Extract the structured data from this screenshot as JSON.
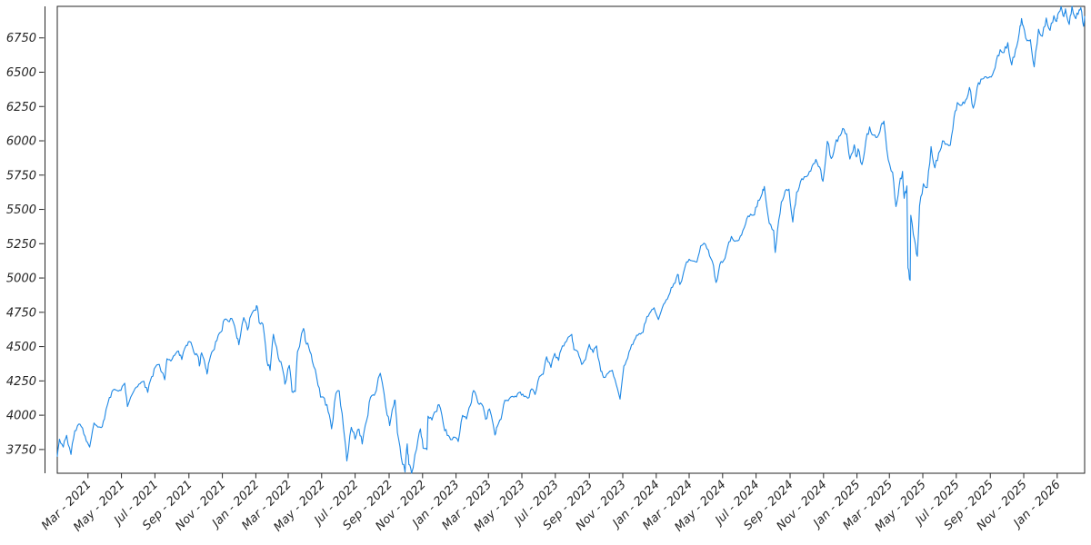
{
  "figure": {
    "background": "#ffffff",
    "title": "",
    "legend": null
  },
  "chart_data": {
    "type": "line",
    "title": "",
    "xlabel": "",
    "ylabel": "",
    "grid": false,
    "legend_position": "none",
    "line_color": "#1E88E5",
    "axis_color": "#262626",
    "tick_label_color": "#262626",
    "ylim": [
      3577,
      6980
    ],
    "x_domain": [
      "2021-01-04",
      "2026-02-20"
    ],
    "yticks": [
      3750,
      4000,
      4250,
      4500,
      4750,
      5000,
      5250,
      5500,
      5750,
      6000,
      6250,
      6500,
      6750
    ],
    "xticks": [
      {
        "date": "2021-03-01",
        "label": "Mar - 2021"
      },
      {
        "date": "2021-05-01",
        "label": "May - 2021"
      },
      {
        "date": "2021-07-01",
        "label": "Jul - 2021"
      },
      {
        "date": "2021-09-01",
        "label": "Sep - 2021"
      },
      {
        "date": "2021-11-01",
        "label": "Nov - 2021"
      },
      {
        "date": "2022-01-01",
        "label": "Jan - 2022"
      },
      {
        "date": "2022-03-01",
        "label": "Mar - 2022"
      },
      {
        "date": "2022-05-01",
        "label": "May - 2022"
      },
      {
        "date": "2022-07-01",
        "label": "Jul - 2022"
      },
      {
        "date": "2022-09-01",
        "label": "Sep - 2022"
      },
      {
        "date": "2022-11-01",
        "label": "Nov - 2022"
      },
      {
        "date": "2023-01-01",
        "label": "Jan - 2023"
      },
      {
        "date": "2023-03-01",
        "label": "Mar - 2023"
      },
      {
        "date": "2023-05-01",
        "label": "May - 2023"
      },
      {
        "date": "2023-07-01",
        "label": "Jul - 2023"
      },
      {
        "date": "2023-09-01",
        "label": "Sep - 2023"
      },
      {
        "date": "2023-11-01",
        "label": "Nov - 2023"
      },
      {
        "date": "2024-01-01",
        "label": "Jan - 2024"
      },
      {
        "date": "2024-03-01",
        "label": "Mar - 2024"
      },
      {
        "date": "2024-05-01",
        "label": "May - 2024"
      },
      {
        "date": "2024-07-01",
        "label": "Jul - 2024"
      },
      {
        "date": "2024-09-01",
        "label": "Sep - 2024"
      },
      {
        "date": "2024-11-01",
        "label": "Nov - 2024"
      },
      {
        "date": "2025-01-01",
        "label": "Jan - 2025"
      },
      {
        "date": "2025-03-01",
        "label": "Mar - 2025"
      },
      {
        "date": "2025-05-01",
        "label": "May - 2025"
      },
      {
        "date": "2025-07-01",
        "label": "Jul - 2025"
      },
      {
        "date": "2025-09-01",
        "label": "Sep - 2025"
      },
      {
        "date": "2025-11-01",
        "label": "Nov - 2025"
      },
      {
        "date": "2026-01-01",
        "label": "Jan - 2026"
      }
    ],
    "points": [
      [
        "2021-01-04",
        3701
      ],
      [
        "2021-01-08",
        3825
      ],
      [
        "2021-01-15",
        3768
      ],
      [
        "2021-01-21",
        3853
      ],
      [
        "2021-01-29",
        3714
      ],
      [
        "2021-02-05",
        3887
      ],
      [
        "2021-02-12",
        3935
      ],
      [
        "2021-02-19",
        3907
      ],
      [
        "2021-02-26",
        3811
      ],
      [
        "2021-03-04",
        3768
      ],
      [
        "2021-03-12",
        3943
      ],
      [
        "2021-03-19",
        3913
      ],
      [
        "2021-03-25",
        3910
      ],
      [
        "2021-03-31",
        3973
      ],
      [
        "2021-04-09",
        4129
      ],
      [
        "2021-04-16",
        4185
      ],
      [
        "2021-04-23",
        4180
      ],
      [
        "2021-04-30",
        4181
      ],
      [
        "2021-05-07",
        4233
      ],
      [
        "2021-05-12",
        4063
      ],
      [
        "2021-05-21",
        4156
      ],
      [
        "2021-05-28",
        4204
      ],
      [
        "2021-06-04",
        4230
      ],
      [
        "2021-06-11",
        4247
      ],
      [
        "2021-06-18",
        4166
      ],
      [
        "2021-06-25",
        4281
      ],
      [
        "2021-07-02",
        4352
      ],
      [
        "2021-07-09",
        4370
      ],
      [
        "2021-07-19",
        4258
      ],
      [
        "2021-07-23",
        4412
      ],
      [
        "2021-07-30",
        4395
      ],
      [
        "2021-08-06",
        4437
      ],
      [
        "2021-08-13",
        4468
      ],
      [
        "2021-08-19",
        4406
      ],
      [
        "2021-08-27",
        4509
      ],
      [
        "2021-09-02",
        4537
      ],
      [
        "2021-09-10",
        4459
      ],
      [
        "2021-09-17",
        4433
      ],
      [
        "2021-09-20",
        4358
      ],
      [
        "2021-09-24",
        4455
      ],
      [
        "2021-10-01",
        4357
      ],
      [
        "2021-10-04",
        4300
      ],
      [
        "2021-10-08",
        4391
      ],
      [
        "2021-10-15",
        4471
      ],
      [
        "2021-10-22",
        4545
      ],
      [
        "2021-10-29",
        4605
      ],
      [
        "2021-11-05",
        4698
      ],
      [
        "2021-11-12",
        4683
      ],
      [
        "2021-11-18",
        4705
      ],
      [
        "2021-11-26",
        4595
      ],
      [
        "2021-12-01",
        4513
      ],
      [
        "2021-12-10",
        4712
      ],
      [
        "2021-12-17",
        4621
      ],
      [
        "2021-12-23",
        4726
      ],
      [
        "2021-12-31",
        4766
      ],
      [
        "2022-01-03",
        4797
      ],
      [
        "2022-01-07",
        4677
      ],
      [
        "2022-01-14",
        4663
      ],
      [
        "2022-01-21",
        4398
      ],
      [
        "2022-01-27",
        4327
      ],
      [
        "2022-02-02",
        4589
      ],
      [
        "2022-02-11",
        4419
      ],
      [
        "2022-02-18",
        4349
      ],
      [
        "2022-02-23",
        4226
      ],
      [
        "2022-03-03",
        4363
      ],
      [
        "2022-03-08",
        4171
      ],
      [
        "2022-03-14",
        4173
      ],
      [
        "2022-03-18",
        4463
      ],
      [
        "2022-03-29",
        4632
      ],
      [
        "2022-04-01",
        4546
      ],
      [
        "2022-04-08",
        4488
      ],
      [
        "2022-04-14",
        4393
      ],
      [
        "2022-04-22",
        4272
      ],
      [
        "2022-04-29",
        4132
      ],
      [
        "2022-05-06",
        4123
      ],
      [
        "2022-05-13",
        4024
      ],
      [
        "2022-05-19",
        3901
      ],
      [
        "2022-05-27",
        4158
      ],
      [
        "2022-06-02",
        4177
      ],
      [
        "2022-06-10",
        3901
      ],
      [
        "2022-06-16",
        3667
      ],
      [
        "2022-06-24",
        3912
      ],
      [
        "2022-07-01",
        3825
      ],
      [
        "2022-07-08",
        3899
      ],
      [
        "2022-07-14",
        3790
      ],
      [
        "2022-07-22",
        3962
      ],
      [
        "2022-07-29",
        4130
      ],
      [
        "2022-08-05",
        4145
      ],
      [
        "2022-08-16",
        4305
      ],
      [
        "2022-08-26",
        4058
      ],
      [
        "2022-09-02",
        3924
      ],
      [
        "2022-09-09",
        4067
      ],
      [
        "2022-09-12",
        4110
      ],
      [
        "2022-09-16",
        3873
      ],
      [
        "2022-09-23",
        3693
      ],
      [
        "2022-09-30",
        3586
      ],
      [
        "2022-10-04",
        3791
      ],
      [
        "2022-10-07",
        3640
      ],
      [
        "2022-10-12",
        3577
      ],
      [
        "2022-10-21",
        3753
      ],
      [
        "2022-10-28",
        3901
      ],
      [
        "2022-11-02",
        3760
      ],
      [
        "2022-11-09",
        3749
      ],
      [
        "2022-11-11",
        3993
      ],
      [
        "2022-11-18",
        3965
      ],
      [
        "2022-11-25",
        4026
      ],
      [
        "2022-12-01",
        4077
      ],
      [
        "2022-12-09",
        3934
      ],
      [
        "2022-12-16",
        3852
      ],
      [
        "2022-12-22",
        3822
      ],
      [
        "2022-12-30",
        3839
      ],
      [
        "2023-01-05",
        3808
      ],
      [
        "2023-01-13",
        3999
      ],
      [
        "2023-01-20",
        3973
      ],
      [
        "2023-01-27",
        4071
      ],
      [
        "2023-02-02",
        4180
      ],
      [
        "2023-02-10",
        4090
      ],
      [
        "2023-02-17",
        4079
      ],
      [
        "2023-02-24",
        3970
      ],
      [
        "2023-03-03",
        4046
      ],
      [
        "2023-03-13",
        3856
      ],
      [
        "2023-03-17",
        3917
      ],
      [
        "2023-03-24",
        3971
      ],
      [
        "2023-03-31",
        4109
      ],
      [
        "2023-04-06",
        4105
      ],
      [
        "2023-04-14",
        4138
      ],
      [
        "2023-04-21",
        4134
      ],
      [
        "2023-04-28",
        4169
      ],
      [
        "2023-05-05",
        4136
      ],
      [
        "2023-05-12",
        4124
      ],
      [
        "2023-05-19",
        4192
      ],
      [
        "2023-05-25",
        4151
      ],
      [
        "2023-06-02",
        4282
      ],
      [
        "2023-06-09",
        4299
      ],
      [
        "2023-06-15",
        4426
      ],
      [
        "2023-06-23",
        4348
      ],
      [
        "2023-06-30",
        4450
      ],
      [
        "2023-07-07",
        4399
      ],
      [
        "2023-07-14",
        4505
      ],
      [
        "2023-07-21",
        4536
      ],
      [
        "2023-07-31",
        4589
      ],
      [
        "2023-08-04",
        4478
      ],
      [
        "2023-08-11",
        4464
      ],
      [
        "2023-08-18",
        4370
      ],
      [
        "2023-08-25",
        4406
      ],
      [
        "2023-09-01",
        4516
      ],
      [
        "2023-09-08",
        4457
      ],
      [
        "2023-09-14",
        4505
      ],
      [
        "2023-09-22",
        4320
      ],
      [
        "2023-09-27",
        4275
      ],
      [
        "2023-10-06",
        4309
      ],
      [
        "2023-10-13",
        4327
      ],
      [
        "2023-10-20",
        4224
      ],
      [
        "2023-10-27",
        4117
      ],
      [
        "2023-11-03",
        4358
      ],
      [
        "2023-11-10",
        4415
      ],
      [
        "2023-11-17",
        4514
      ],
      [
        "2023-11-24",
        4559
      ],
      [
        "2023-12-01",
        4595
      ],
      [
        "2023-12-08",
        4604
      ],
      [
        "2023-12-15",
        4719
      ],
      [
        "2023-12-22",
        4755
      ],
      [
        "2023-12-28",
        4783
      ],
      [
        "2024-01-05",
        4697
      ],
      [
        "2024-01-12",
        4784
      ],
      [
        "2024-01-19",
        4840
      ],
      [
        "2024-01-26",
        4891
      ],
      [
        "2024-02-02",
        4959
      ],
      [
        "2024-02-09",
        5027
      ],
      [
        "2024-02-13",
        4953
      ],
      [
        "2024-02-23",
        5089
      ],
      [
        "2024-03-01",
        5137
      ],
      [
        "2024-03-08",
        5124
      ],
      [
        "2024-03-15",
        5117
      ],
      [
        "2024-03-22",
        5234
      ],
      [
        "2024-03-28",
        5254
      ],
      [
        "2024-04-05",
        5204
      ],
      [
        "2024-04-12",
        5123
      ],
      [
        "2024-04-19",
        4967
      ],
      [
        "2024-04-26",
        5100
      ],
      [
        "2024-05-03",
        5128
      ],
      [
        "2024-05-10",
        5223
      ],
      [
        "2024-05-17",
        5303
      ],
      [
        "2024-05-23",
        5268
      ],
      [
        "2024-05-31",
        5278
      ],
      [
        "2024-06-07",
        5347
      ],
      [
        "2024-06-14",
        5432
      ],
      [
        "2024-06-21",
        5465
      ],
      [
        "2024-06-28",
        5460
      ],
      [
        "2024-07-05",
        5567
      ],
      [
        "2024-07-12",
        5615
      ],
      [
        "2024-07-16",
        5667
      ],
      [
        "2024-07-25",
        5399
      ],
      [
        "2024-08-02",
        5347
      ],
      [
        "2024-08-05",
        5186
      ],
      [
        "2024-08-09",
        5344
      ],
      [
        "2024-08-16",
        5554
      ],
      [
        "2024-08-23",
        5635
      ],
      [
        "2024-08-30",
        5648
      ],
      [
        "2024-09-06",
        5408
      ],
      [
        "2024-09-13",
        5626
      ],
      [
        "2024-09-20",
        5703
      ],
      [
        "2024-09-27",
        5738
      ],
      [
        "2024-10-04",
        5751
      ],
      [
        "2024-10-11",
        5815
      ],
      [
        "2024-10-18",
        5865
      ],
      [
        "2024-10-25",
        5808
      ],
      [
        "2024-10-31",
        5705
      ],
      [
        "2024-11-08",
        5996
      ],
      [
        "2024-11-15",
        5871
      ],
      [
        "2024-11-22",
        5969
      ],
      [
        "2024-11-29",
        6032
      ],
      [
        "2024-12-06",
        6090
      ],
      [
        "2024-12-13",
        6051
      ],
      [
        "2024-12-19",
        5867
      ],
      [
        "2024-12-27",
        5971
      ],
      [
        "2024-12-31",
        5882
      ],
      [
        "2025-01-03",
        5942
      ],
      [
        "2025-01-10",
        5827
      ],
      [
        "2025-01-17",
        5997
      ],
      [
        "2025-01-24",
        6101
      ],
      [
        "2025-01-31",
        6041
      ],
      [
        "2025-02-07",
        6026
      ],
      [
        "2025-02-14",
        6115
      ],
      [
        "2025-02-19",
        6144
      ],
      [
        "2025-02-27",
        5862
      ],
      [
        "2025-03-07",
        5770
      ],
      [
        "2025-03-13",
        5521
      ],
      [
        "2025-03-19",
        5676
      ],
      [
        "2025-03-25",
        5777
      ],
      [
        "2025-03-28",
        5581
      ],
      [
        "2025-04-02",
        5671
      ],
      [
        "2025-04-04",
        5074
      ],
      [
        "2025-04-08",
        4983
      ],
      [
        "2025-04-09",
        5457
      ],
      [
        "2025-04-16",
        5276
      ],
      [
        "2025-04-21",
        5158
      ],
      [
        "2025-04-25",
        5525
      ],
      [
        "2025-05-02",
        5687
      ],
      [
        "2025-05-09",
        5660
      ],
      [
        "2025-05-16",
        5958
      ],
      [
        "2025-05-23",
        5803
      ],
      [
        "2025-05-30",
        5912
      ],
      [
        "2025-06-06",
        6000
      ],
      [
        "2025-06-13",
        5977
      ],
      [
        "2025-06-20",
        5968
      ],
      [
        "2025-06-27",
        6173
      ],
      [
        "2025-07-03",
        6279
      ],
      [
        "2025-07-11",
        6260
      ],
      [
        "2025-07-18",
        6297
      ],
      [
        "2025-07-25",
        6389
      ],
      [
        "2025-08-01",
        6238
      ],
      [
        "2025-08-08",
        6389
      ],
      [
        "2025-08-15",
        6450
      ],
      [
        "2025-08-22",
        6467
      ],
      [
        "2025-08-29",
        6460
      ],
      [
        "2025-09-05",
        6481
      ],
      [
        "2025-09-12",
        6584
      ],
      [
        "2025-09-19",
        6664
      ],
      [
        "2025-09-26",
        6644
      ],
      [
        "2025-10-03",
        6716
      ],
      [
        "2025-10-10",
        6553
      ],
      [
        "2025-10-17",
        6664
      ],
      [
        "2025-10-24",
        6792
      ],
      [
        "2025-10-28",
        6891
      ],
      [
        "2025-10-31",
        6840
      ],
      [
        "2025-11-07",
        6729
      ],
      [
        "2025-11-13",
        6737
      ],
      [
        "2025-11-20",
        6539
      ],
      [
        "2025-11-28",
        6813
      ],
      [
        "2025-12-05",
        6762
      ],
      [
        "2025-12-12",
        6895
      ],
      [
        "2025-12-19",
        6805
      ],
      [
        "2025-12-26",
        6912
      ],
      [
        "2025-12-31",
        6870
      ],
      [
        "2026-01-02",
        6920
      ],
      [
        "2026-01-08",
        6978
      ],
      [
        "2026-01-13",
        6905
      ],
      [
        "2026-01-16",
        6962
      ],
      [
        "2026-01-23",
        6848
      ],
      [
        "2026-01-28",
        6980
      ],
      [
        "2026-02-04",
        6890
      ],
      [
        "2026-02-10",
        6955
      ],
      [
        "2026-02-13",
        6970
      ],
      [
        "2026-02-18",
        6835
      ],
      [
        "2026-02-20",
        6906
      ]
    ]
  }
}
